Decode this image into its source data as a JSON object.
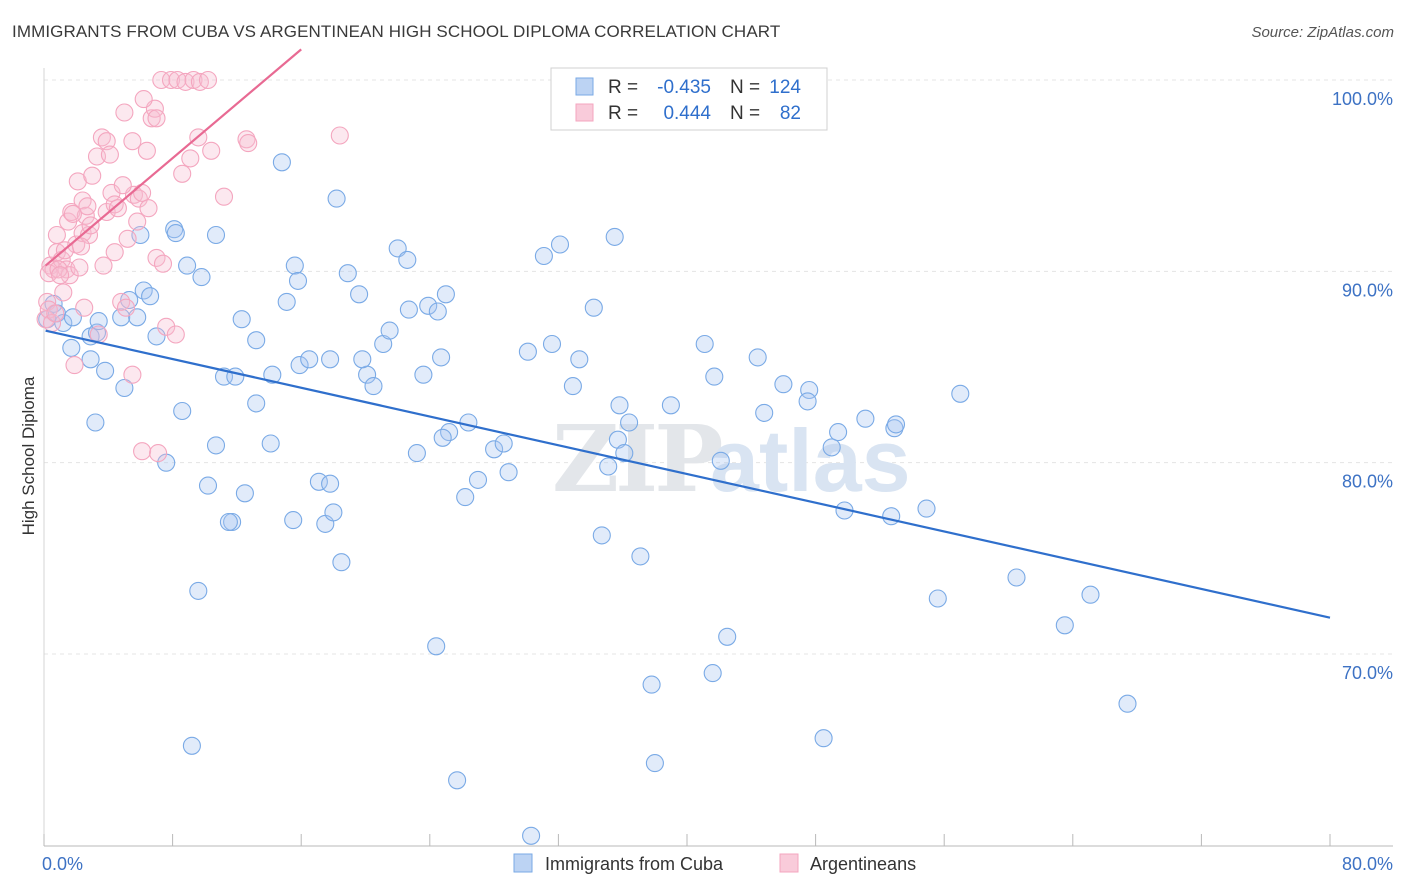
{
  "title": "IMMIGRANTS FROM CUBA VS ARGENTINEAN HIGH SCHOOL DIPLOMA CORRELATION CHART",
  "source": "Source: ZipAtlas.com",
  "watermark": {
    "part1": "ZIP",
    "part2": "atlas"
  },
  "chart_data": {
    "type": "scatter",
    "ylabel": "High School Diploma",
    "xlabel": "",
    "xlim": [
      0,
      80
    ],
    "ylim": [
      60.5,
      102.5
    ],
    "x_tick_labels": [
      {
        "value": 0,
        "label": "0.0%"
      },
      {
        "value": 80,
        "label": "80.0%"
      }
    ],
    "y_tick_labels": [
      {
        "value": 100,
        "label": "100.0%"
      },
      {
        "value": 90,
        "label": "90.0%"
      },
      {
        "value": 80,
        "label": "80.0%"
      },
      {
        "value": 70,
        "label": "70.0%"
      }
    ],
    "x_minor_ticks": [
      0,
      8,
      16,
      24,
      32,
      40,
      48,
      56,
      64,
      72,
      80
    ],
    "grid": true,
    "legend_position": "top-center",
    "series": [
      {
        "name": "Immigrants from Cuba",
        "color": "#7aaae6",
        "line_color": "#2f6fcc",
        "stats": {
          "r_label": "R =",
          "r": "-0.435",
          "n_label": "N =",
          "n": "124"
        },
        "trend": {
          "x0": 0.1,
          "y0": 86.9,
          "x1": 80,
          "y1": 71.9
        },
        "points": [
          [
            0.2,
            87.5
          ],
          [
            0.6,
            88.3
          ],
          [
            0.8,
            87.8
          ],
          [
            1.2,
            87.3
          ],
          [
            1.8,
            87.6
          ],
          [
            1.7,
            86.0
          ],
          [
            2.9,
            86.6
          ],
          [
            3.3,
            86.8
          ],
          [
            2.9,
            85.4
          ],
          [
            3.4,
            87.4
          ],
          [
            4.8,
            87.6
          ],
          [
            5.3,
            88.5
          ],
          [
            6.2,
            89.0
          ],
          [
            6.6,
            88.7
          ],
          [
            5.8,
            87.6
          ],
          [
            7.0,
            86.6
          ],
          [
            3.8,
            84.8
          ],
          [
            5.0,
            83.9
          ],
          [
            3.2,
            82.1
          ],
          [
            6.0,
            91.9
          ],
          [
            8.1,
            92.2
          ],
          [
            8.9,
            90.3
          ],
          [
            9.8,
            89.7
          ],
          [
            8.2,
            92.0
          ],
          [
            10.7,
            91.9
          ],
          [
            12.3,
            87.5
          ],
          [
            13.2,
            86.4
          ],
          [
            11.2,
            84.5
          ],
          [
            11.9,
            84.5
          ],
          [
            13.2,
            83.1
          ],
          [
            8.6,
            82.7
          ],
          [
            10.7,
            80.9
          ],
          [
            7.6,
            80.0
          ],
          [
            10.2,
            78.8
          ],
          [
            12.5,
            78.4
          ],
          [
            11.7,
            76.9
          ],
          [
            11.5,
            76.9
          ],
          [
            9.6,
            73.3
          ],
          [
            9.2,
            65.2
          ],
          [
            14.1,
            81.0
          ],
          [
            14.2,
            84.6
          ],
          [
            15.6,
            90.3
          ],
          [
            15.1,
            88.4
          ],
          [
            15.8,
            89.5
          ],
          [
            15.9,
            85.1
          ],
          [
            16.5,
            85.4
          ],
          [
            14.8,
            95.7
          ],
          [
            17.8,
            85.4
          ],
          [
            17.1,
            79.0
          ],
          [
            17.8,
            78.9
          ],
          [
            15.5,
            77.0
          ],
          [
            17.5,
            76.8
          ],
          [
            18.0,
            77.4
          ],
          [
            18.5,
            74.8
          ],
          [
            18.2,
            93.8
          ],
          [
            18.9,
            89.9
          ],
          [
            19.6,
            88.8
          ],
          [
            20.1,
            84.6
          ],
          [
            19.8,
            85.4
          ],
          [
            20.5,
            84.0
          ],
          [
            21.1,
            86.2
          ],
          [
            21.5,
            86.9
          ],
          [
            22.7,
            88.0
          ],
          [
            22.0,
            91.2
          ],
          [
            22.6,
            90.6
          ],
          [
            23.9,
            88.2
          ],
          [
            24.5,
            87.9
          ],
          [
            25.0,
            88.8
          ],
          [
            24.7,
            85.5
          ],
          [
            23.6,
            84.6
          ],
          [
            23.2,
            80.5
          ],
          [
            25.2,
            81.6
          ],
          [
            24.8,
            81.3
          ],
          [
            26.2,
            78.2
          ],
          [
            27.0,
            79.1
          ],
          [
            26.4,
            82.1
          ],
          [
            28.0,
            80.7
          ],
          [
            28.6,
            81.0
          ],
          [
            28.9,
            79.5
          ],
          [
            24.4,
            70.4
          ],
          [
            25.7,
            63.4
          ],
          [
            30.1,
            85.8
          ],
          [
            31.1,
            90.8
          ],
          [
            32.1,
            91.4
          ],
          [
            31.6,
            86.2
          ],
          [
            33.3,
            85.4
          ],
          [
            32.9,
            84.0
          ],
          [
            34.2,
            88.1
          ],
          [
            35.5,
            91.8
          ],
          [
            35.7,
            81.2
          ],
          [
            36.1,
            80.5
          ],
          [
            35.1,
            79.8
          ],
          [
            34.7,
            76.2
          ],
          [
            37.1,
            75.1
          ],
          [
            36.4,
            82.1
          ],
          [
            35.8,
            83.0
          ],
          [
            37.8,
            68.4
          ],
          [
            38.0,
            64.3
          ],
          [
            30.3,
            60.5
          ],
          [
            39.0,
            83.0
          ],
          [
            41.1,
            86.2
          ],
          [
            41.7,
            84.5
          ],
          [
            42.1,
            80.1
          ],
          [
            41.6,
            69.0
          ],
          [
            42.5,
            70.9
          ],
          [
            44.4,
            85.5
          ],
          [
            44.8,
            82.6
          ],
          [
            46.0,
            84.1
          ],
          [
            47.6,
            83.8
          ],
          [
            47.5,
            83.2
          ],
          [
            48.5,
            65.6
          ],
          [
            49.0,
            80.8
          ],
          [
            49.4,
            81.6
          ],
          [
            49.8,
            77.5
          ],
          [
            51.1,
            82.3
          ],
          [
            52.7,
            77.2
          ],
          [
            52.9,
            81.8
          ],
          [
            53.0,
            82.0
          ],
          [
            54.9,
            77.6
          ],
          [
            55.6,
            72.9
          ],
          [
            57.0,
            83.6
          ],
          [
            60.5,
            74.0
          ],
          [
            63.5,
            71.5
          ],
          [
            65.1,
            73.1
          ],
          [
            67.4,
            67.4
          ]
        ]
      },
      {
        "name": "Argentineans",
        "color": "#f4a6bf",
        "line_color": "#e86a93",
        "stats": {
          "r_label": "R =",
          "r": "0.444",
          "n_label": "N =",
          "n": "82"
        },
        "trend": {
          "x0": 0.1,
          "y0": 90.3,
          "x1": 16.0,
          "y1": 101.6
        },
        "points": [
          [
            0.1,
            87.5
          ],
          [
            0.2,
            88.4
          ],
          [
            0.3,
            88.0
          ],
          [
            0.4,
            90.3
          ],
          [
            0.6,
            90.1
          ],
          [
            0.8,
            91.0
          ],
          [
            0.8,
            91.9
          ],
          [
            1.1,
            90.6
          ],
          [
            1.4,
            90.1
          ],
          [
            1.6,
            89.8
          ],
          [
            1.2,
            88.9
          ],
          [
            1.5,
            92.6
          ],
          [
            1.7,
            93.1
          ],
          [
            2.0,
            91.4
          ],
          [
            2.2,
            90.2
          ],
          [
            2.4,
            92.0
          ],
          [
            2.4,
            93.7
          ],
          [
            2.6,
            92.9
          ],
          [
            2.8,
            91.9
          ],
          [
            2.1,
            94.7
          ],
          [
            3.0,
            95.0
          ],
          [
            3.3,
            96.0
          ],
          [
            3.6,
            97.0
          ],
          [
            3.9,
            96.8
          ],
          [
            3.9,
            93.1
          ],
          [
            4.2,
            94.1
          ],
          [
            4.4,
            93.5
          ],
          [
            4.6,
            93.3
          ],
          [
            4.4,
            91.0
          ],
          [
            4.8,
            88.4
          ],
          [
            5.1,
            88.1
          ],
          [
            5.5,
            96.8
          ],
          [
            5.6,
            94.0
          ],
          [
            5.9,
            93.8
          ],
          [
            6.1,
            94.1
          ],
          [
            6.4,
            96.3
          ],
          [
            6.7,
            98.0
          ],
          [
            6.9,
            98.5
          ],
          [
            7.0,
            98.0
          ],
          [
            7.3,
            100.0
          ],
          [
            7.9,
            100.0
          ],
          [
            8.3,
            100.0
          ],
          [
            8.8,
            99.9
          ],
          [
            9.3,
            100.0
          ],
          [
            9.7,
            99.9
          ],
          [
            10.2,
            100.0
          ],
          [
            9.6,
            97.0
          ],
          [
            10.4,
            96.3
          ],
          [
            11.2,
            93.9
          ],
          [
            12.6,
            96.9
          ],
          [
            12.7,
            96.7
          ],
          [
            18.4,
            97.1
          ],
          [
            2.7,
            93.4
          ],
          [
            2.5,
            88.1
          ],
          [
            3.4,
            86.7
          ],
          [
            5.5,
            84.6
          ],
          [
            6.1,
            80.6
          ],
          [
            7.1,
            80.5
          ],
          [
            7.6,
            87.1
          ],
          [
            8.2,
            86.7
          ],
          [
            1.9,
            85.1
          ],
          [
            0.3,
            89.9
          ],
          [
            0.5,
            87.3
          ],
          [
            0.9,
            90.1
          ],
          [
            1.3,
            91.1
          ],
          [
            1.8,
            93.0
          ],
          [
            2.3,
            91.3
          ],
          [
            2.9,
            92.4
          ],
          [
            3.7,
            90.3
          ],
          [
            4.9,
            94.5
          ],
          [
            5.2,
            91.7
          ],
          [
            5.8,
            92.6
          ],
          [
            6.5,
            93.3
          ],
          [
            7.0,
            90.7
          ],
          [
            7.4,
            90.4
          ],
          [
            8.6,
            95.1
          ],
          [
            9.1,
            95.9
          ],
          [
            4.1,
            96.1
          ],
          [
            5.0,
            98.3
          ],
          [
            6.2,
            99.0
          ],
          [
            1.0,
            89.8
          ],
          [
            0.7,
            87.8
          ]
        ]
      }
    ]
  }
}
